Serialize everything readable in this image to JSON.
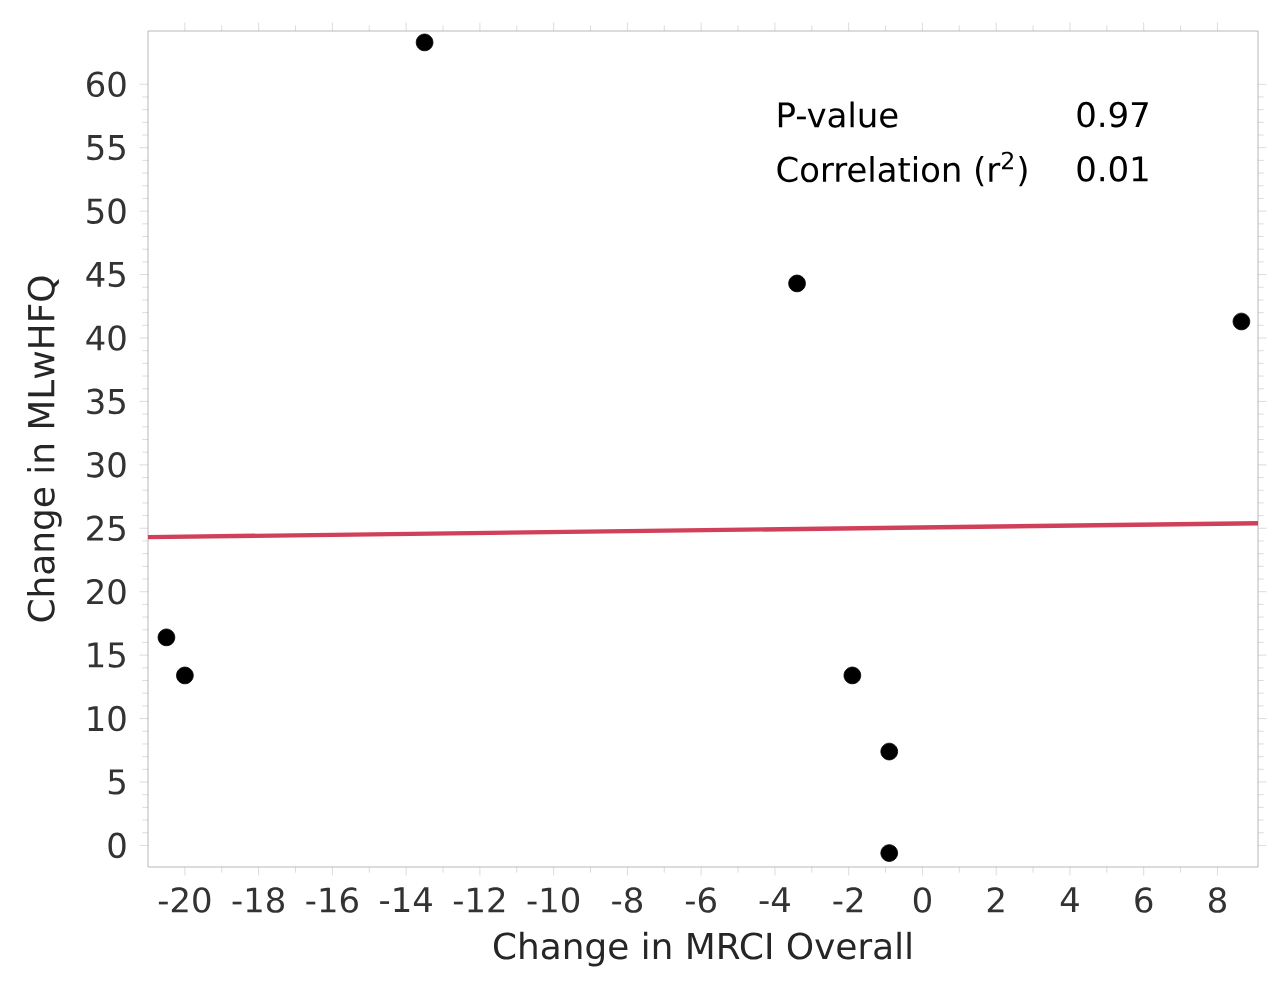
{
  "chart_data": {
    "type": "scatter",
    "xlabel": "Change in MRCI Overall",
    "ylabel": "Change in MLwHFQ",
    "annotations": [
      "P-value",
      "0.97",
      "Correlation (r$^{2}$)",
      "0.01"
    ],
    "xlim": [
      -21,
      9.1
    ],
    "ylim": [
      -1.7,
      64.2
    ],
    "xticks": [
      -20,
      -18,
      -16,
      -14,
      -12,
      -10,
      -8,
      -6,
      -4,
      -2,
      0,
      2,
      4,
      6,
      8
    ],
    "yticks": [
      0,
      5,
      10,
      15,
      20,
      25,
      30,
      35,
      40,
      45,
      50,
      55,
      60
    ],
    "grid": false,
    "series": [
      {
        "marker": "circle",
        "color": "#000000",
        "x": [
          -20.5,
          -20.0,
          -13.5,
          -3.4,
          -1.9,
          -0.9,
          -0.9,
          8.65
        ],
        "values": [
          16.4,
          13.4,
          63.3,
          44.3,
          13.4,
          7.4,
          -0.6,
          41.3
        ]
      },
      {
        "type": "line",
        "marker": "none",
        "color": "#d0405a",
        "x": [
          -21,
          9.1
        ],
        "values": [
          24.3,
          25.4
        ]
      }
    ]
  }
}
